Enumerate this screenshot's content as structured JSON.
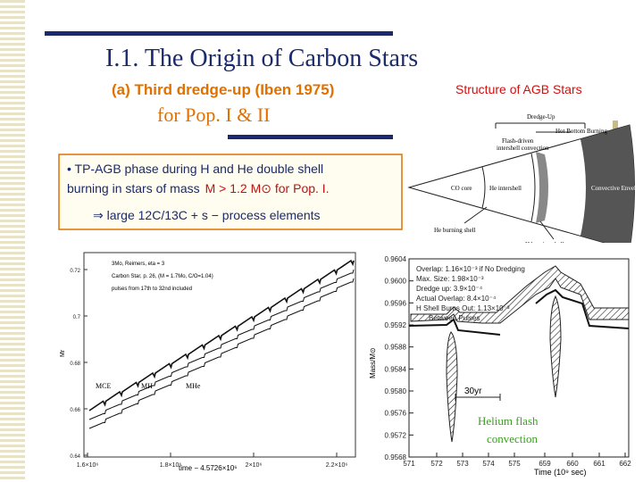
{
  "slide": {
    "title": "I.1.  The Origin of Carbon Stars",
    "subtitle": "(a) Third dredge-up (Iben 1975)",
    "subtitle2": "for Pop.  I & II",
    "figure_caption": "Structure of AGB Stars",
    "box": {
      "line1": "• TP-AGB phase during H and He double shell",
      "line2a": "burning in stars of mass",
      "line2b": "M > 1.2 M⊙ for Pop. I.",
      "line3": "⇒ large 12C/13C  + s − process elements"
    },
    "diagram": {
      "dredge_up": "Dredge-Up",
      "flash_line1": "Flash-driven",
      "flash_line2": "intershell convection",
      "hbb": "Hot Bottom Burning",
      "co_core": "CO core",
      "he_intershell": "He intershell",
      "envelope": "Convective Envelope",
      "he_shell": "He burning shell",
      "h_shell": "H burning shell"
    },
    "left_plot": {
      "notes": [
        "3Mo, Reimers, eta = 3",
        "Carbon Star, p. 26, (M = 1.7Mo, C/O=1.04)",
        "pulses from 17th to 32nd included"
      ],
      "yticks": [
        "0.72",
        "0.7",
        "0.68",
        "0.66",
        "0.64"
      ],
      "ylabel": "Mr",
      "xticks": [
        "1.6×10⁶",
        "1.8×10⁶",
        "2×10⁶",
        "2.2×10⁶"
      ],
      "xlabel": "time − 4.5726×10⁶",
      "curves": [
        "MCE",
        "MH",
        "MHe"
      ]
    },
    "right_plot": {
      "legend": [
        "Overlap: 1.16×10⁻³ if No Dredging",
        "Max. Size: 1.98×10⁻³",
        "Dredge up: 3.9×10⁻⁴",
        "Actual Overlap: 8.4×10⁻⁴",
        "H Shell Burns Out: 1.13×10⁻³",
        "Between Pulses"
      ],
      "yticks": [
        "0.9604",
        "0.9600",
        "0.9596",
        "0.9592",
        "0.9588",
        "0.9584",
        "0.9580",
        "0.9576",
        "0.9572",
        "0.9568"
      ],
      "ylabel": "Mass/M⊙",
      "xticks": [
        "571",
        "572",
        "573",
        "574",
        "575",
        "659",
        "660",
        "661",
        "662"
      ],
      "xlabel": "Time  (10⁹ sec)",
      "interval": "30yr",
      "annotation_line1": "Helium flash",
      "annotation_line2": "convection"
    }
  }
}
